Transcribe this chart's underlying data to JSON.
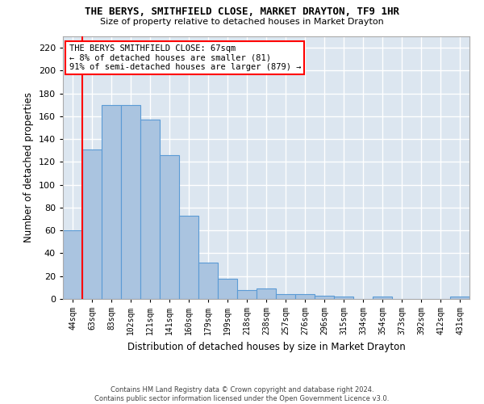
{
  "title": "THE BERYS, SMITHFIELD CLOSE, MARKET DRAYTON, TF9 1HR",
  "subtitle": "Size of property relative to detached houses in Market Drayton",
  "xlabel": "Distribution of detached houses by size in Market Drayton",
  "ylabel": "Number of detached properties",
  "bin_labels": [
    "44sqm",
    "63sqm",
    "83sqm",
    "102sqm",
    "121sqm",
    "141sqm",
    "160sqm",
    "179sqm",
    "199sqm",
    "218sqm",
    "238sqm",
    "257sqm",
    "276sqm",
    "296sqm",
    "315sqm",
    "334sqm",
    "354sqm",
    "373sqm",
    "392sqm",
    "412sqm",
    "431sqm"
  ],
  "bar_heights": [
    60,
    131,
    170,
    170,
    157,
    126,
    73,
    32,
    18,
    8,
    9,
    4,
    4,
    3,
    2,
    0,
    2,
    0,
    0,
    0,
    2
  ],
  "bar_color": "#aac4e0",
  "bar_edge_color": "#5b9bd5",
  "background_color": "#dce6f0",
  "grid_color": "#ffffff",
  "red_line_x": 1,
  "annotation_text": "THE BERYS SMITHFIELD CLOSE: 67sqm\n← 8% of detached houses are smaller (81)\n91% of semi-detached houses are larger (879) →",
  "footer": "Contains HM Land Registry data © Crown copyright and database right 2024.\nContains public sector information licensed under the Open Government Licence v3.0.",
  "ylim": [
    0,
    230
  ],
  "yticks": [
    0,
    20,
    40,
    60,
    80,
    100,
    120,
    140,
    160,
    180,
    200,
    220
  ]
}
